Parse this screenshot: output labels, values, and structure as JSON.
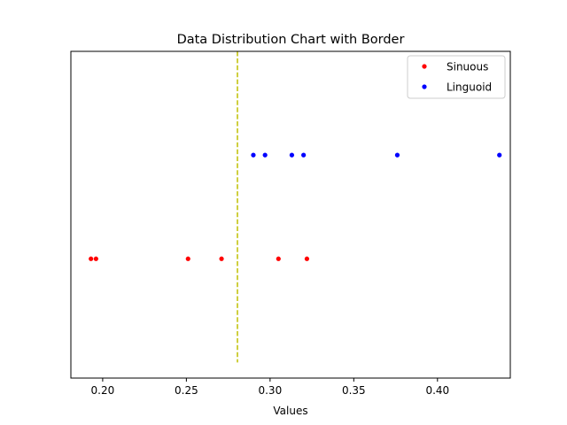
{
  "chart_data": {
    "type": "scatter",
    "title": "Data Distribution Chart with Border",
    "xlabel": "Values",
    "ylabel": "",
    "xlim": [
      0.181,
      0.4435
    ],
    "ylim": [
      -1.15,
      2.0
    ],
    "xticks": [
      0.2,
      0.25,
      0.3,
      0.35,
      0.4
    ],
    "xtick_labels": [
      "0.20",
      "0.25",
      "0.30",
      "0.35",
      "0.40"
    ],
    "y_ticks_visible": false,
    "grid": false,
    "legend_position": "top-right",
    "series": [
      {
        "name": "Sinuous",
        "color": "#ff0000",
        "marker": "point",
        "x": [
          0.193,
          0.196,
          0.251,
          0.271,
          0.305,
          0.322
        ],
        "y": [
          0,
          0,
          0,
          0,
          0,
          0
        ]
      },
      {
        "name": "Linguoid",
        "color": "#0000ff",
        "marker": "point",
        "x": [
          0.29,
          0.297,
          0.313,
          0.32,
          0.376,
          0.437
        ],
        "y": [
          1,
          1,
          1,
          1,
          1,
          1
        ]
      }
    ],
    "reference_line": {
      "orientation": "vertical",
      "x": 0.2805,
      "y_range": [
        -1.0,
        2.0
      ],
      "style": "dashed",
      "color": "#bfbf00"
    }
  }
}
